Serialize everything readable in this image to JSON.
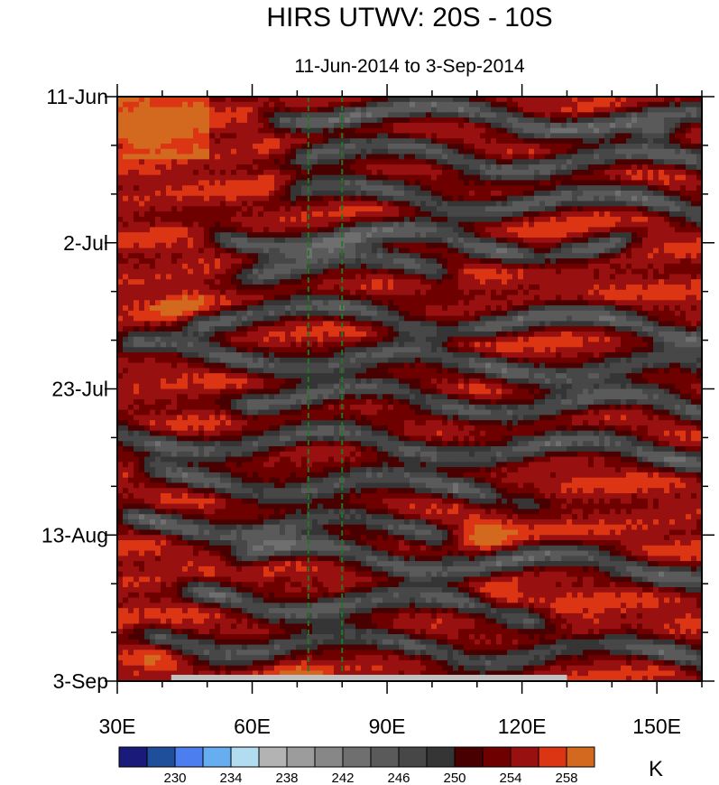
{
  "chart_data": {
    "type": "heatmap",
    "title": "HIRS UTWV: 20S - 10S",
    "subtitle": "11-Jun-2014 to 3-Sep-2014",
    "x_axis": {
      "label": "",
      "range": [
        30,
        160
      ],
      "ticks": [
        30,
        60,
        90,
        120,
        150
      ],
      "tick_labels": [
        "30E",
        "60E",
        "90E",
        "120E",
        "150E"
      ],
      "minor_ticks": [
        40,
        50,
        70,
        80,
        100,
        110,
        130,
        140,
        160
      ]
    },
    "y_axis": {
      "label": "",
      "range_days": [
        0,
        84
      ],
      "ticks_days": [
        0,
        21,
        42,
        63,
        84
      ],
      "tick_labels": [
        "11-Jun",
        "2-Jul",
        "23-Jul",
        "13-Aug",
        "3-Sep"
      ],
      "minor_ticks_days": [
        7,
        14,
        28,
        35,
        49,
        56,
        70,
        77
      ],
      "direction": "time increases downward"
    },
    "reference_lines_lon": [
      72.5,
      80
    ],
    "missing_data_bar_lon": [
      42,
      130
    ],
    "colorbar": {
      "unit": "K",
      "levels": [
        228,
        230,
        232,
        234,
        236,
        238,
        240,
        242,
        244,
        246,
        248,
        250,
        252,
        254,
        256,
        258
      ],
      "labels": [
        "230",
        "234",
        "238",
        "242",
        "246",
        "250",
        "254",
        "258"
      ],
      "colors": [
        "#1a1a7a",
        "#1f4f9a",
        "#4c7ef0",
        "#66aef0",
        "#b2dcef",
        "#b3b3b3",
        "#9c9c9c",
        "#878787",
        "#6f6f6f",
        "#5a5a5a",
        "#474747",
        "#353535",
        "#480000",
        "#6e0000",
        "#991010",
        "#dc3514",
        "#d2691e"
      ]
    },
    "warm_region_lon_range": [
      30,
      75
    ],
    "wave_bands": [
      {
        "day": 2,
        "lon_start": 68,
        "lon_end": 160,
        "phase": 0.0
      },
      {
        "day": 8,
        "lon_start": 74,
        "lon_end": 160,
        "phase": 1.2
      },
      {
        "day": 14,
        "lon_start": 72,
        "lon_end": 160,
        "phase": 2.1
      },
      {
        "day": 20,
        "lon_start": 55,
        "lon_end": 140,
        "phase": 0.6
      },
      {
        "day": 24,
        "lon_start": 62,
        "lon_end": 100,
        "phase": 1.7
      },
      {
        "day": 31,
        "lon_start": 50,
        "lon_end": 160,
        "phase": 2.8
      },
      {
        "day": 37,
        "lon_start": 35,
        "lon_end": 160,
        "phase": 0.3
      },
      {
        "day": 43,
        "lon_start": 60,
        "lon_end": 160,
        "phase": 1.5
      },
      {
        "day": 49,
        "lon_start": 30,
        "lon_end": 160,
        "phase": 2.4
      },
      {
        "day": 55,
        "lon_start": 40,
        "lon_end": 120,
        "phase": 0.9
      },
      {
        "day": 61,
        "lon_start": 35,
        "lon_end": 100,
        "phase": 2.0
      },
      {
        "day": 66,
        "lon_start": 60,
        "lon_end": 160,
        "phase": 3.0
      },
      {
        "day": 72,
        "lon_start": 50,
        "lon_end": 120,
        "phase": 0.4
      },
      {
        "day": 78,
        "lon_start": 40,
        "lon_end": 160,
        "phase": 1.9
      }
    ],
    "warm_patches": [
      {
        "day": 5,
        "lon": 38,
        "value": 260
      },
      {
        "day": 22,
        "lon": 125,
        "value": 258
      },
      {
        "day": 30,
        "lon": 45,
        "value": 258
      },
      {
        "day": 35,
        "lon": 105,
        "value": 258
      },
      {
        "day": 58,
        "lon": 118,
        "value": 260
      },
      {
        "day": 63,
        "lon": 112,
        "value": 259
      },
      {
        "day": 72,
        "lon": 115,
        "value": 258
      },
      {
        "day": 77,
        "lon": 135,
        "value": 258
      },
      {
        "day": 80,
        "lon": 40,
        "value": 259
      },
      {
        "day": 83,
        "lon": 70,
        "value": 258
      }
    ],
    "cold_spot": {
      "day": 5,
      "lon": 150,
      "value": 237
    }
  }
}
